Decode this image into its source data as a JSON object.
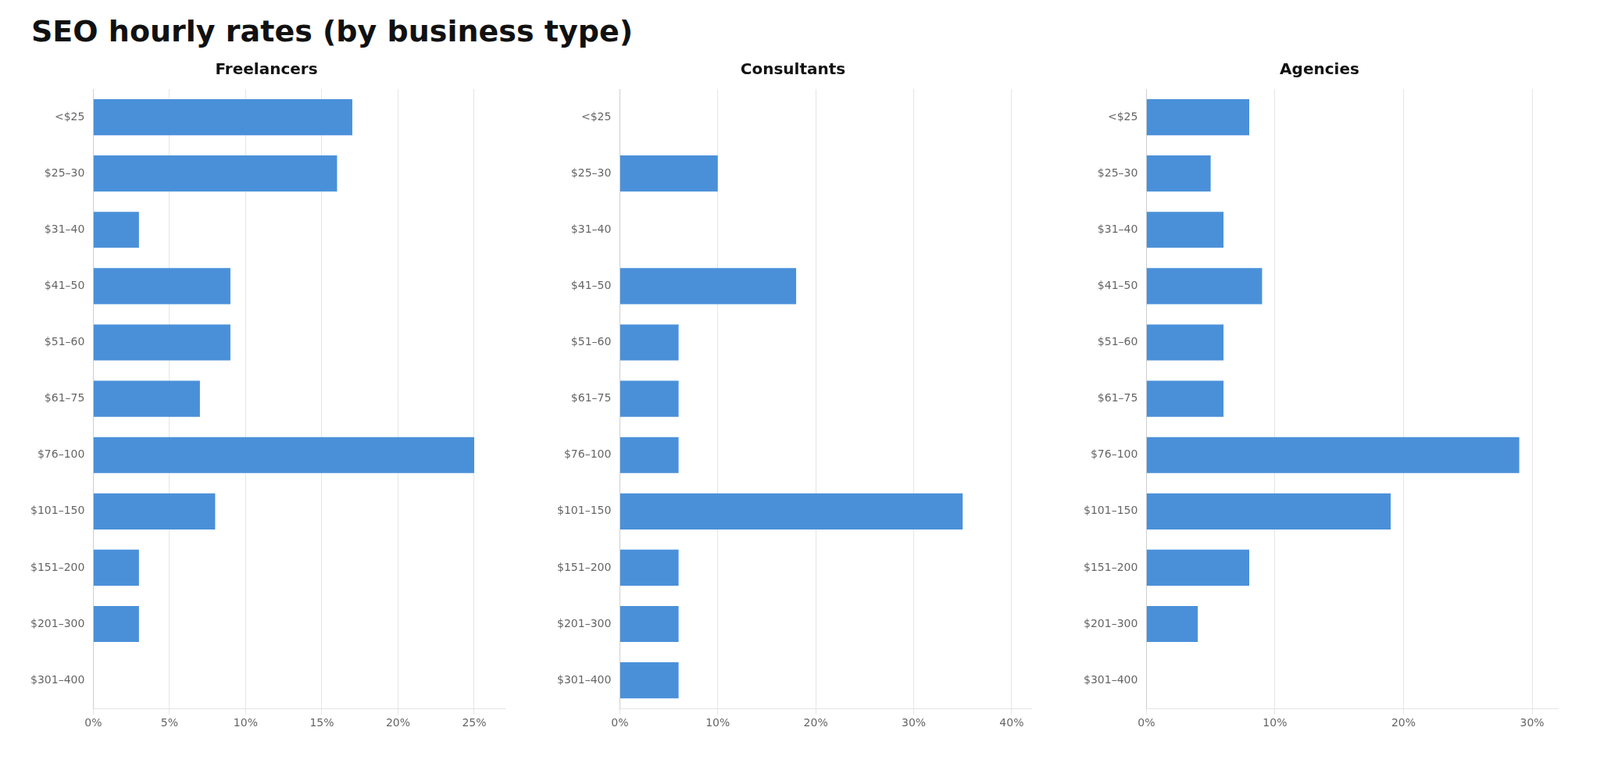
{
  "title": "SEO hourly rates (by business type)",
  "chart_data": [
    {
      "type": "bar",
      "orientation": "horizontal",
      "title": "Freelancers",
      "categories": [
        "<$25",
        "$25–30",
        "$31–40",
        "$41–50",
        "$51–60",
        "$61–75",
        "$76–100",
        "$101–150",
        "$151–200",
        "$201–300",
        "$301–400"
      ],
      "values": [
        17,
        16,
        3,
        9,
        9,
        7,
        25,
        8,
        3,
        3,
        0
      ],
      "color": "#4a90d9",
      "xlim": [
        0,
        27
      ],
      "xticks": [
        {
          "value": 0,
          "label": "0%"
        },
        {
          "value": 5,
          "label": "5%"
        },
        {
          "value": 10,
          "label": "10%"
        },
        {
          "value": 15,
          "label": "15%"
        },
        {
          "value": 20,
          "label": "20%"
        },
        {
          "value": 25,
          "label": "25%"
        }
      ],
      "grid": true
    },
    {
      "type": "bar",
      "orientation": "horizontal",
      "title": "Consultants",
      "categories": [
        "<$25",
        "$25–30",
        "$31–40",
        "$41–50",
        "$51–60",
        "$61–75",
        "$76–100",
        "$101–150",
        "$151–200",
        "$201–300",
        "$301–400"
      ],
      "values": [
        0,
        10,
        0,
        18,
        6,
        6,
        6,
        35,
        6,
        6,
        6
      ],
      "color": "#4a90d9",
      "xlim": [
        0,
        42
      ],
      "xticks": [
        {
          "value": 0,
          "label": "0%"
        },
        {
          "value": 10,
          "label": "10%"
        },
        {
          "value": 20,
          "label": "20%"
        },
        {
          "value": 30,
          "label": "30%"
        },
        {
          "value": 40,
          "label": "40%"
        }
      ],
      "grid": true
    },
    {
      "type": "bar",
      "orientation": "horizontal",
      "title": "Agencies",
      "categories": [
        "<$25",
        "$25–30",
        "$31–40",
        "$41–50",
        "$51–60",
        "$61–75",
        "$76–100",
        "$101–150",
        "$151–200",
        "$201–300",
        "$301–400"
      ],
      "values": [
        8,
        5,
        6,
        9,
        6,
        6,
        29,
        19,
        8,
        4,
        0
      ],
      "color": "#4a90d9",
      "xlim": [
        0,
        32
      ],
      "xticks": [
        {
          "value": 0,
          "label": "0%"
        },
        {
          "value": 10,
          "label": "10%"
        },
        {
          "value": 20,
          "label": "20%"
        },
        {
          "value": 30,
          "label": "30%"
        }
      ],
      "grid": true
    }
  ]
}
